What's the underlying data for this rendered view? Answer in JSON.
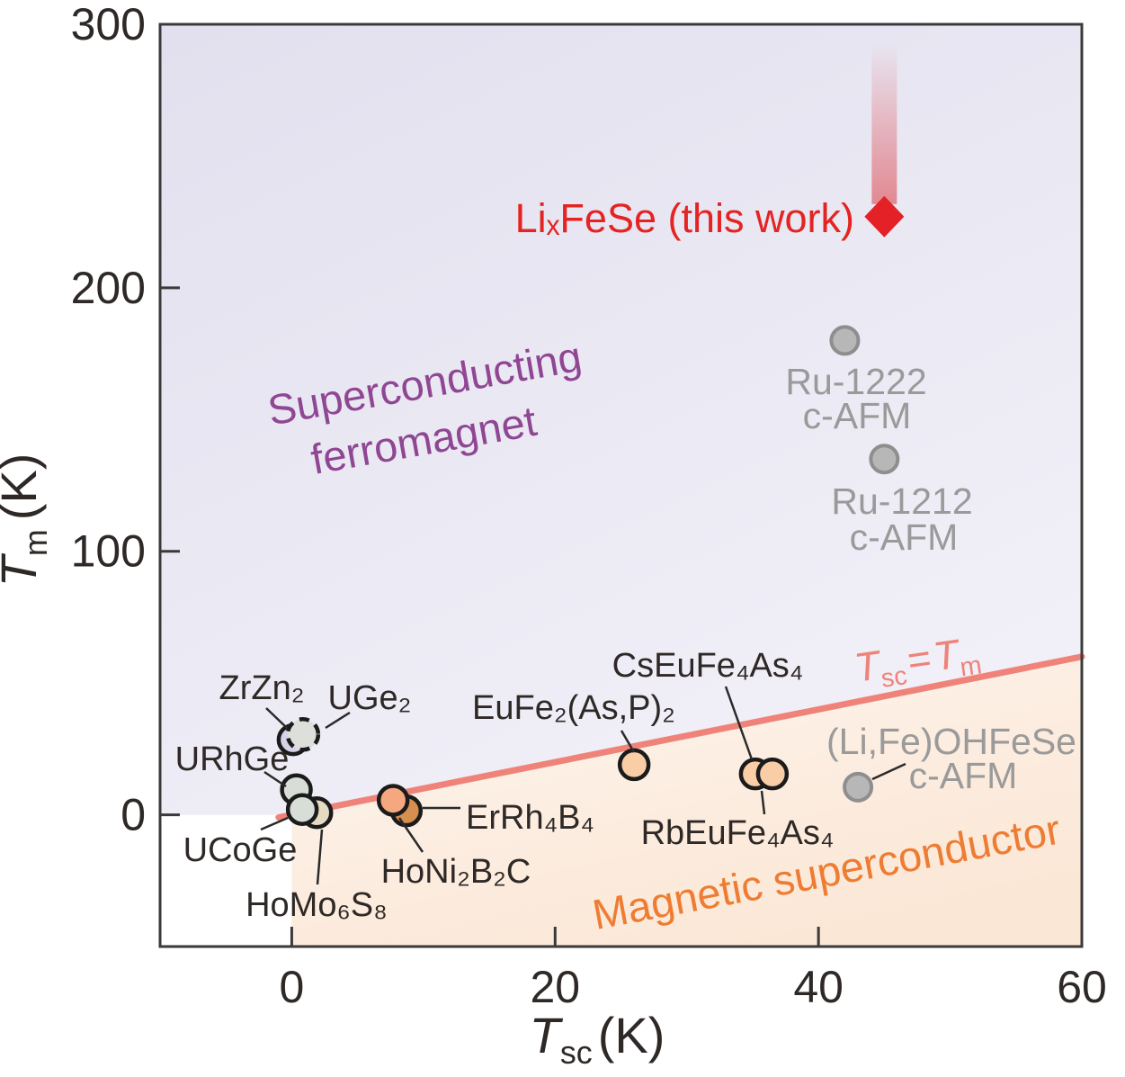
{
  "chart_data": {
    "type": "scatter",
    "xlabel_parts": {
      "symbol": "T",
      "sub": "sc",
      "unit": "(K)"
    },
    "ylabel_parts": {
      "symbol": "T",
      "sub": "m",
      "unit": "(K)"
    },
    "xlim": [
      -10,
      60
    ],
    "ylim": [
      -50,
      300
    ],
    "x_ticks": [
      0,
      20,
      40,
      60
    ],
    "y_ticks": [
      0,
      100,
      200,
      300
    ],
    "grid": false,
    "reference_line": {
      "equation": "Tsc = Tm",
      "parts": [
        "T",
        "sc",
        "=",
        "T",
        "m"
      ],
      "from": [
        -1,
        -1
      ],
      "to": [
        60,
        60
      ],
      "color": "#ef837a"
    },
    "regions": [
      {
        "name": "Superconducting ferromagnet",
        "text_color": "#8f4693",
        "gradient": [
          "#e2e0ee",
          "#f1eff7"
        ]
      },
      {
        "name": "Magnetic superconductor",
        "text_color": "#ee7c33",
        "gradient": [
          "#fdf5ee",
          "#fbe7d6"
        ]
      }
    ],
    "points": [
      {
        "id": "zrzn2",
        "label": "ZrZn₂",
        "Tsc": 0.1,
        "Tm": 28.5,
        "marker": "circle",
        "r": 16,
        "fill": "#d7d2e8",
        "stroke": "#1b1b1b"
      },
      {
        "id": "uge2",
        "label": "UGe₂",
        "Tsc": 0.85,
        "Tm": 30.5,
        "marker": "circle",
        "r": 17,
        "fill": "#dcdfda",
        "stroke": "#1b1b1b",
        "dashed": true
      },
      {
        "id": "homo6s8",
        "label": "HoMo₆S₈",
        "Tsc": 1.9,
        "Tm": 0.8,
        "marker": "circle",
        "r": 16,
        "fill": "#e6dac3",
        "stroke": "#1b1b1b"
      },
      {
        "id": "urhge",
        "label": "URhGe",
        "Tsc": 0.35,
        "Tm": 9.5,
        "marker": "circle",
        "r": 16,
        "fill": "#d8ddd8",
        "stroke": "#1b1b1b"
      },
      {
        "id": "ucoge",
        "label": "UCoGe",
        "Tsc": 0.8,
        "Tm": 2.0,
        "marker": "circle",
        "r": 16,
        "fill": "#d8ddd8",
        "stroke": "#1b1b1b"
      },
      {
        "id": "errh4b4",
        "label": "ErRh₄B₄",
        "Tsc": 8.7,
        "Tm": 1.5,
        "marker": "circle",
        "r": 16,
        "fill": "#d78f4f",
        "stroke": "#1b1b1b"
      },
      {
        "id": "honi2b2c",
        "label": "HoNi₂B₂C",
        "Tsc": 7.7,
        "Tm": 5.5,
        "marker": "circle",
        "r": 16,
        "fill": "#f5a87f",
        "stroke": "#1b1b1b"
      },
      {
        "id": "eufe2asp2",
        "label": "EuFe₂(As,P)₂",
        "Tsc": 26,
        "Tm": 19,
        "marker": "circle",
        "r": 16,
        "fill": "#f9cda6",
        "stroke": "#1b1b1b"
      },
      {
        "id": "cseufe4as4",
        "label": "CsEuFe₄As₄",
        "Tsc": 35.2,
        "Tm": 15.5,
        "marker": "circle",
        "r": 16,
        "fill": "#f9cda6",
        "stroke": "#1b1b1b"
      },
      {
        "id": "rbeufe4as4",
        "label": "RbEuFe₄As₄",
        "Tsc": 36.5,
        "Tm": 15.5,
        "marker": "circle",
        "r": 16,
        "fill": "#f9cda6",
        "stroke": "#1b1b1b"
      },
      {
        "id": "lifeohfese",
        "label": "(Li,Fe)OHFeSe",
        "sublabel": "c-AFM",
        "Tsc": 43,
        "Tm": 10.5,
        "marker": "circle",
        "r": 15,
        "fill": "#b7b7b7",
        "stroke": "#8e8e8e"
      },
      {
        "id": "ru1222",
        "label": "Ru-1222",
        "sublabel": "c-AFM",
        "Tsc": 42,
        "Tm": 180,
        "marker": "circle",
        "r": 15,
        "fill": "#b7b7b7",
        "stroke": "#8e8e8e"
      },
      {
        "id": "ru1212",
        "label": "Ru-1212",
        "sublabel": "c-AFM",
        "Tsc": 45,
        "Tm": 135,
        "marker": "circle",
        "r": 15,
        "fill": "#b7b7b7",
        "stroke": "#8e8e8e"
      },
      {
        "id": "lixfese",
        "label": "LiₓFeSe (this work)",
        "Tsc": 45,
        "Tm": 227,
        "marker": "diamond",
        "fill": "#e32126",
        "arrow_to": 293,
        "arrow_color": "#dc3b43"
      }
    ]
  },
  "annotations": {
    "region1_line1": "Superconducting",
    "region1_line2": "ferromagnet",
    "region2": "Magnetic superconductor"
  },
  "colors": {
    "red_accent": "#e32126",
    "pink_line": "#ef837a",
    "purple_text": "#8f4693",
    "orange_text": "#ee7c33",
    "gray_series": "#b7b7b7",
    "text": "#2e2926"
  }
}
